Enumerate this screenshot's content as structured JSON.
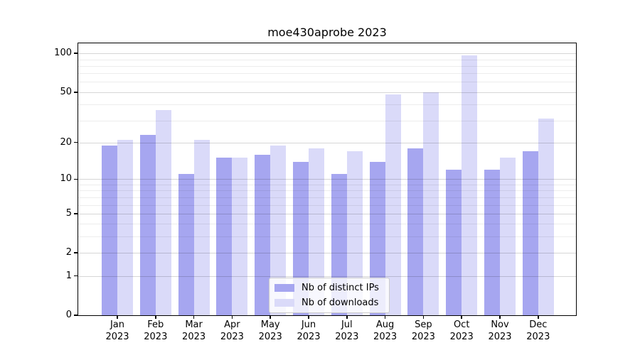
{
  "chart_data": {
    "type": "bar",
    "title": "moe430aprobe 2023",
    "categories": [
      "Jan",
      "Feb",
      "Mar",
      "Apr",
      "May",
      "Jun",
      "Jul",
      "Aug",
      "Sep",
      "Oct",
      "Nov",
      "Dec"
    ],
    "year_label": "2023",
    "series": [
      {
        "name": "Nb of distinct IPs",
        "color": "#a6a6f0",
        "values": [
          19,
          23,
          11,
          15,
          16,
          14,
          11,
          14,
          18,
          12,
          12,
          17
        ]
      },
      {
        "name": "Nb of downloads",
        "color": "#dadaf9",
        "values": [
          21,
          36,
          21,
          15,
          19,
          18,
          17,
          48,
          50,
          96,
          15,
          31
        ]
      }
    ],
    "xlabel": "",
    "ylabel": "",
    "yscale": "log10(value+1)",
    "ylim": [
      0,
      110
    ],
    "yticks": [
      0,
      1,
      2,
      5,
      10,
      20,
      50,
      100
    ],
    "minor_yticks": [
      3,
      4,
      6,
      7,
      8,
      9,
      30,
      40,
      60,
      70,
      80,
      90
    ],
    "grid": "horizontal gridlines drawn over bars",
    "legend_position": "lower center"
  }
}
